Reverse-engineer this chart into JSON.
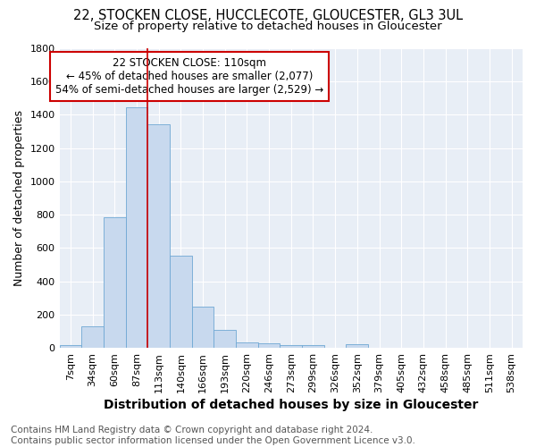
{
  "title": "22, STOCKEN CLOSE, HUCCLECOTE, GLOUCESTER, GL3 3UL",
  "subtitle": "Size of property relative to detached houses in Gloucester",
  "xlabel": "Distribution of detached houses by size in Gloucester",
  "ylabel": "Number of detached properties",
  "bar_color": "#c8d9ee",
  "bar_edge_color": "#6fa8d4",
  "axes_bg_color": "#e8eef6",
  "fig_bg_color": "#ffffff",
  "grid_color": "#ffffff",
  "bin_labels": [
    "7sqm",
    "34sqm",
    "60sqm",
    "87sqm",
    "113sqm",
    "140sqm",
    "166sqm",
    "193sqm",
    "220sqm",
    "246sqm",
    "273sqm",
    "299sqm",
    "326sqm",
    "352sqm",
    "379sqm",
    "405sqm",
    "432sqm",
    "458sqm",
    "485sqm",
    "511sqm",
    "538sqm"
  ],
  "bar_heights": [
    15,
    130,
    785,
    1445,
    1345,
    555,
    248,
    110,
    32,
    28,
    18,
    15,
    0,
    20,
    0,
    0,
    0,
    0,
    0,
    0,
    0
  ],
  "ylim": [
    0,
    1800
  ],
  "yticks": [
    0,
    200,
    400,
    600,
    800,
    1000,
    1200,
    1400,
    1600,
    1800
  ],
  "vline_x": 3.5,
  "vline_color": "#cc0000",
  "annotation_text": "22 STOCKEN CLOSE: 110sqm\n← 45% of detached houses are smaller (2,077)\n54% of semi-detached houses are larger (2,529) →",
  "annotation_box_color": "#ffffff",
  "annotation_box_edge": "#cc0000",
  "footer_text": "Contains HM Land Registry data © Crown copyright and database right 2024.\nContains public sector information licensed under the Open Government Licence v3.0.",
  "title_fontsize": 10.5,
  "subtitle_fontsize": 9.5,
  "xlabel_fontsize": 10,
  "ylabel_fontsize": 9,
  "tick_fontsize": 8,
  "annotation_fontsize": 8.5,
  "footer_fontsize": 7.5
}
